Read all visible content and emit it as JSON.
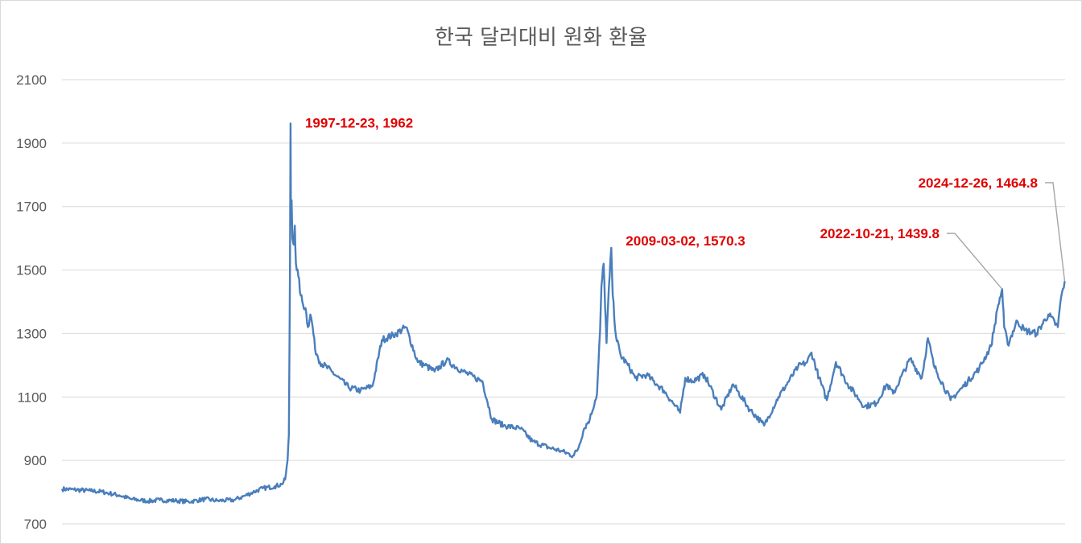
{
  "chart_data": {
    "type": "line",
    "title": "한국 달러대비 원화 환율",
    "xlabel": "",
    "ylabel": "",
    "ylim": [
      700,
      2100
    ],
    "yticks": [
      700,
      900,
      1100,
      1300,
      1500,
      1700,
      1900,
      2100
    ],
    "xlim": [
      "1990-01-01",
      "2024-12-31"
    ],
    "grid": "horizontal",
    "legend": "none",
    "line_color": "#4a7ebb",
    "series": [
      {
        "x": [
          "1990-01-02",
          "1990-06-01",
          "1991-01-02",
          "1991-06-01",
          "1991-09-01",
          "1992-01-02",
          "1992-06-01",
          "1993-01-02",
          "1993-06-01",
          "1994-01-02",
          "1994-06-01",
          "1995-01-02",
          "1995-06-01",
          "1996-01-02",
          "1996-06-01",
          "1996-09-01",
          "1997-01-02",
          "1997-06-01",
          "1997-09-01",
          "1997-10-15",
          "1997-11-15",
          "1997-12-01",
          "1997-12-10",
          "1997-12-15",
          "1997-12-23",
          "1997-12-27",
          "1998-01-05",
          "1998-01-15",
          "1998-02-01",
          "1998-02-15",
          "1998-03-01",
          "1998-04-01",
          "1998-05-01",
          "1998-06-01",
          "1998-07-01",
          "1998-08-01",
          "1998-09-01",
          "1998-10-01",
          "1998-11-01",
          "1998-12-01",
          "1999-01-01",
          "1999-06-01",
          "2000-01-01",
          "2000-06-01",
          "2000-11-01",
          "2001-03-01",
          "2001-09-01",
          "2002-01-01",
          "2002-06-01",
          "2002-09-01",
          "2003-01-01",
          "2003-06-01",
          "2004-01-01",
          "2004-06-01",
          "2004-09-01",
          "2005-01-01",
          "2005-06-01",
          "2006-01-01",
          "2006-06-01",
          "2007-01-01",
          "2007-06-01",
          "2007-10-31",
          "2008-01-01",
          "2008-03-20",
          "2008-06-01",
          "2008-09-01",
          "2008-10-10",
          "2008-10-28",
          "2008-11-24",
          "2008-12-31",
          "2009-01-20",
          "2009-03-02",
          "2009-03-20",
          "2009-05-01",
          "2009-07-01",
          "2009-10-01",
          "2010-01-01",
          "2010-05-25",
          "2010-10-01",
          "2011-01-01",
          "2011-07-27",
          "2011-10-01",
          "2012-01-01",
          "2012-06-01",
          "2013-01-01",
          "2013-06-01",
          "2014-01-01",
          "2014-06-01",
          "2014-07-03",
          "2015-01-01",
          "2015-09-07",
          "2016-01-01",
          "2016-02-25",
          "2016-06-01",
          "2016-09-07",
          "2017-01-01",
          "2017-06-01",
          "2018-01-01",
          "2018-06-01",
          "2018-10-11",
          "2019-01-01",
          "2019-08-05",
          "2020-01-01",
          "2020-03-19",
          "2020-06-01",
          "2021-01-01",
          "2021-06-01",
          "2022-01-01",
          "2022-06-01",
          "2022-09-01",
          "2022-10-21",
          "2022-11-15",
          "2023-01-01",
          "2023-05-01",
          "2023-08-01",
          "2024-01-01",
          "2024-06-01",
          "2024-09-30",
          "2024-11-01",
          "2024-12-26"
        ],
        "values": [
          810,
          808,
          804,
          801,
          796,
          790,
          778,
          772,
          775,
          773,
          770,
          778,
          773,
          775,
          790,
          800,
          812,
          818,
          825,
          840,
          900,
          980,
          1300,
          1500,
          1962,
          1700,
          1720,
          1600,
          1580,
          1640,
          1520,
          1480,
          1420,
          1390,
          1380,
          1320,
          1360,
          1320,
          1250,
          1230,
          1210,
          1180,
          1130,
          1120,
          1135,
          1280,
          1300,
          1320,
          1210,
          1200,
          1180,
          1215,
          1180,
          1160,
          1150,
          1030,
          1010,
          1000,
          960,
          940,
          930,
          915,
          935,
          1000,
          1030,
          1110,
          1310,
          1450,
          1520,
          1270,
          1390,
          1570,
          1420,
          1290,
          1230,
          1200,
          1160,
          1170,
          1140,
          1120,
          1050,
          1160,
          1150,
          1170,
          1060,
          1140,
          1060,
          1020,
          1010,
          1100,
          1195,
          1210,
          1240,
          1160,
          1090,
          1210,
          1140,
          1070,
          1080,
          1140,
          1110,
          1220,
          1160,
          1285,
          1200,
          1090,
          1130,
          1190,
          1260,
          1390,
          1440,
          1320,
          1265,
          1340,
          1310,
          1300,
          1360,
          1320,
          1400,
          1465
        ]
      }
    ],
    "annotations": [
      {
        "label": "1997-12-23, 1962",
        "x": "1997-12-23",
        "y": 1962
      },
      {
        "label": "2009-03-02, 1570.3",
        "x": "2009-03-02",
        "y": 1570.3
      },
      {
        "label": "2022-10-21, 1439.8",
        "x": "2022-10-21",
        "y": 1439.8
      },
      {
        "label": "2024-12-26, 1464.8",
        "x": "2024-12-26",
        "y": 1464.8
      }
    ]
  }
}
